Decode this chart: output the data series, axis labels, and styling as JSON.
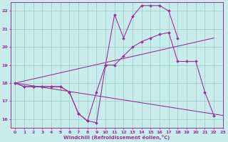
{
  "x": [
    0,
    1,
    2,
    3,
    4,
    5,
    6,
    7,
    8,
    9,
    10,
    11,
    12,
    13,
    14,
    15,
    16,
    17,
    18,
    19,
    20,
    21,
    22,
    23
  ],
  "series1": [
    18.0,
    17.8,
    17.8,
    17.8,
    17.8,
    17.8,
    17.5,
    16.3,
    15.9,
    15.8,
    19.0,
    21.8,
    20.5,
    21.7,
    22.3,
    22.3,
    22.3,
    22.0,
    20.5,
    null,
    null,
    null,
    null,
    null
  ],
  "series2": [
    18.0,
    17.8,
    17.8,
    17.8,
    17.8,
    17.8,
    17.5,
    16.3,
    15.9,
    17.5,
    19.0,
    19.0,
    19.5,
    20.0,
    20.3,
    20.5,
    20.7,
    20.8,
    19.2,
    19.2,
    19.2,
    17.5,
    16.2,
    null
  ],
  "trend1_x": [
    0,
    22
  ],
  "trend1_y": [
    18.0,
    20.5
  ],
  "trend2_x": [
    0,
    23
  ],
  "trend2_y": [
    18.0,
    16.2
  ],
  "line_color": "#993399",
  "bg_color": "#c8ecec",
  "grid_color": "#a0d0d0",
  "xlabel": "Windchill (Refroidissement éolien,°C)",
  "ylim": [
    15.5,
    22.5
  ],
  "xlim": [
    -0.5,
    23
  ],
  "yticks": [
    16,
    17,
    18,
    19,
    20,
    21,
    22
  ],
  "xticks": [
    0,
    1,
    2,
    3,
    4,
    5,
    6,
    7,
    8,
    9,
    10,
    11,
    12,
    13,
    14,
    15,
    16,
    17,
    18,
    19,
    20,
    21,
    22,
    23
  ]
}
